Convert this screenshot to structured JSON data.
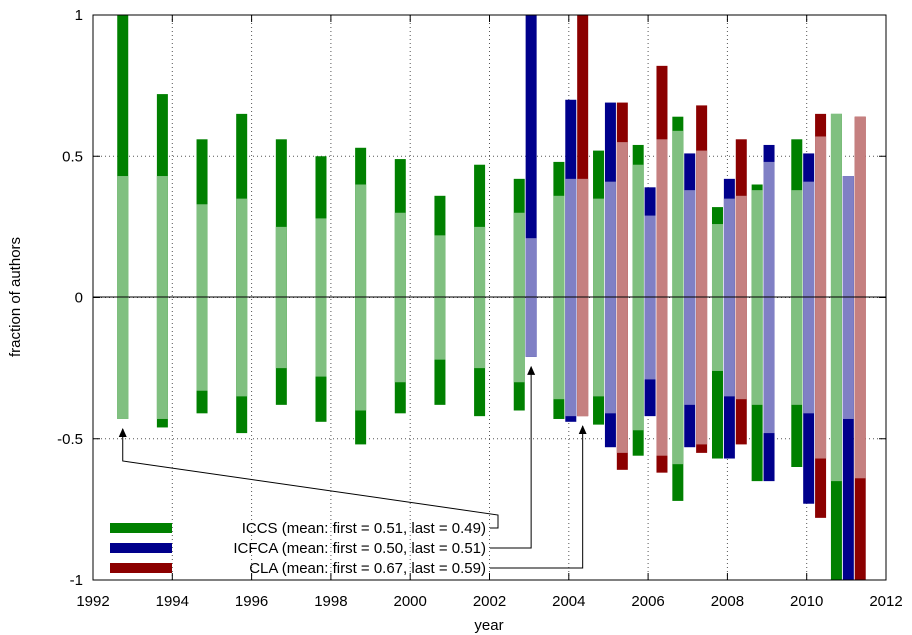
{
  "chart_data": {
    "type": "bar",
    "title": "",
    "xlabel": "year",
    "ylabel": "fraction of authors",
    "xlim": [
      1992,
      2012
    ],
    "ylim": [
      -1,
      1
    ],
    "xticks": [
      "1992",
      "1994",
      "1996",
      "1998",
      "2000",
      "2002",
      "2004",
      "2006",
      "2008",
      "2010",
      "2012"
    ],
    "yticks": [
      "1",
      "0.5",
      "0",
      "-0.5",
      "-1"
    ],
    "grid": true,
    "legend_position": "bottom-left",
    "description_of_bars": "Each bar spans from -inner_neg to +outer_pos; the light part covers the inner (first-or-last overlap) fraction, the dark parts extend to the full top/bottom values.",
    "series": [
      {
        "name": "ICCS",
        "legend_label": "ICCS (mean: first = 0.51, last = 0.49)",
        "color_dark": "#008000",
        "color_light": "#80c080",
        "points": [
          {
            "x": 1992.75,
            "top": 1.0,
            "inner_top": 0.43,
            "inner_bottom": -0.43,
            "bottom": -0.43
          },
          {
            "x": 1993.75,
            "top": 0.72,
            "inner_top": 0.43,
            "inner_bottom": -0.43,
            "bottom": -0.46
          },
          {
            "x": 1994.75,
            "top": 0.56,
            "inner_top": 0.33,
            "inner_bottom": -0.33,
            "bottom": -0.41
          },
          {
            "x": 1995.75,
            "top": 0.65,
            "inner_top": 0.35,
            "inner_bottom": -0.35,
            "bottom": -0.48
          },
          {
            "x": 1996.75,
            "top": 0.56,
            "inner_top": 0.25,
            "inner_bottom": -0.25,
            "bottom": -0.38
          },
          {
            "x": 1997.75,
            "top": 0.5,
            "inner_top": 0.28,
            "inner_bottom": -0.28,
            "bottom": -0.44
          },
          {
            "x": 1998.75,
            "top": 0.53,
            "inner_top": 0.4,
            "inner_bottom": -0.4,
            "bottom": -0.52
          },
          {
            "x": 1999.75,
            "top": 0.49,
            "inner_top": 0.3,
            "inner_bottom": -0.3,
            "bottom": -0.41
          },
          {
            "x": 2000.75,
            "top": 0.36,
            "inner_top": 0.22,
            "inner_bottom": -0.22,
            "bottom": -0.38
          },
          {
            "x": 2001.75,
            "top": 0.47,
            "inner_top": 0.25,
            "inner_bottom": -0.25,
            "bottom": -0.42
          },
          {
            "x": 2002.75,
            "top": 0.42,
            "inner_top": 0.3,
            "inner_bottom": -0.3,
            "bottom": -0.4
          },
          {
            "x": 2003.75,
            "top": 0.48,
            "inner_top": 0.36,
            "inner_bottom": -0.36,
            "bottom": -0.43
          },
          {
            "x": 2004.75,
            "top": 0.52,
            "inner_top": 0.35,
            "inner_bottom": -0.35,
            "bottom": -0.45
          },
          {
            "x": 2005.75,
            "top": 0.54,
            "inner_top": 0.47,
            "inner_bottom": -0.47,
            "bottom": -0.56
          },
          {
            "x": 2006.75,
            "top": 0.64,
            "inner_top": 0.59,
            "inner_bottom": -0.59,
            "bottom": -0.72
          },
          {
            "x": 2007.75,
            "top": 0.32,
            "inner_top": 0.26,
            "inner_bottom": -0.26,
            "bottom": -0.57
          },
          {
            "x": 2008.75,
            "top": 0.4,
            "inner_top": 0.38,
            "inner_bottom": -0.38,
            "bottom": -0.65
          },
          {
            "x": 2009.75,
            "top": 0.56,
            "inner_top": 0.38,
            "inner_bottom": -0.38,
            "bottom": -0.6
          },
          {
            "x": 2010.75,
            "top": 0.65,
            "inner_top": 0.65,
            "inner_bottom": -0.65,
            "bottom": -1.0
          }
        ]
      },
      {
        "name": "ICFCA",
        "legend_label": "ICFCA (mean: first = 0.50, last = 0.51)",
        "color_dark": "#00008b",
        "color_light": "#8080c5",
        "points": [
          {
            "x": 2003.05,
            "top": 1.0,
            "inner_top": 0.21,
            "inner_bottom": -0.21,
            "bottom": -0.21
          },
          {
            "x": 2004.05,
            "top": 0.7,
            "inner_top": 0.42,
            "inner_bottom": -0.42,
            "bottom": -0.44
          },
          {
            "x": 2005.05,
            "top": 0.69,
            "inner_top": 0.41,
            "inner_bottom": -0.41,
            "bottom": -0.53
          },
          {
            "x": 2006.05,
            "top": 0.39,
            "inner_top": 0.29,
            "inner_bottom": -0.29,
            "bottom": -0.42
          },
          {
            "x": 2007.05,
            "top": 0.51,
            "inner_top": 0.38,
            "inner_bottom": -0.38,
            "bottom": -0.53
          },
          {
            "x": 2008.05,
            "top": 0.42,
            "inner_top": 0.35,
            "inner_bottom": -0.35,
            "bottom": -0.57
          },
          {
            "x": 2009.05,
            "top": 0.54,
            "inner_top": 0.48,
            "inner_bottom": -0.48,
            "bottom": -0.65
          },
          {
            "x": 2010.05,
            "top": 0.51,
            "inner_top": 0.41,
            "inner_bottom": -0.41,
            "bottom": -0.73
          },
          {
            "x": 2011.05,
            "top": 0.43,
            "inner_top": 0.43,
            "inner_bottom": -0.43,
            "bottom": -1.0
          }
        ]
      },
      {
        "name": "CLA",
        "legend_label": "CLA (mean: first = 0.67, last = 0.59)",
        "color_dark": "#8b0000",
        "color_light": "#c58080",
        "points": [
          {
            "x": 2004.35,
            "top": 1.0,
            "inner_top": 0.42,
            "inner_bottom": -0.42,
            "bottom": -0.42
          },
          {
            "x": 2005.35,
            "top": 0.69,
            "inner_top": 0.55,
            "inner_bottom": -0.55,
            "bottom": -0.61
          },
          {
            "x": 2006.35,
            "top": 0.82,
            "inner_top": 0.56,
            "inner_bottom": -0.56,
            "bottom": -0.62
          },
          {
            "x": 2007.35,
            "top": 0.68,
            "inner_top": 0.52,
            "inner_bottom": -0.52,
            "bottom": -0.55
          },
          {
            "x": 2008.35,
            "top": 0.56,
            "inner_top": 0.36,
            "inner_bottom": -0.36,
            "bottom": -0.52
          },
          {
            "x": 2010.35,
            "top": 0.65,
            "inner_top": 0.57,
            "inner_bottom": -0.57,
            "bottom": -0.78
          },
          {
            "x": 2011.35,
            "top": 0.64,
            "inner_top": 0.64,
            "inner_bottom": -0.64,
            "bottom": -1.0
          }
        ]
      }
    ],
    "annotations": [
      {
        "target_series": "ICCS",
        "target_x": 1992.75,
        "target_y": -0.43
      },
      {
        "target_series": "ICFCA",
        "target_x": 2003.05,
        "target_y": -0.21
      },
      {
        "target_series": "CLA",
        "target_x": 2004.35,
        "target_y": -0.42
      }
    ]
  }
}
